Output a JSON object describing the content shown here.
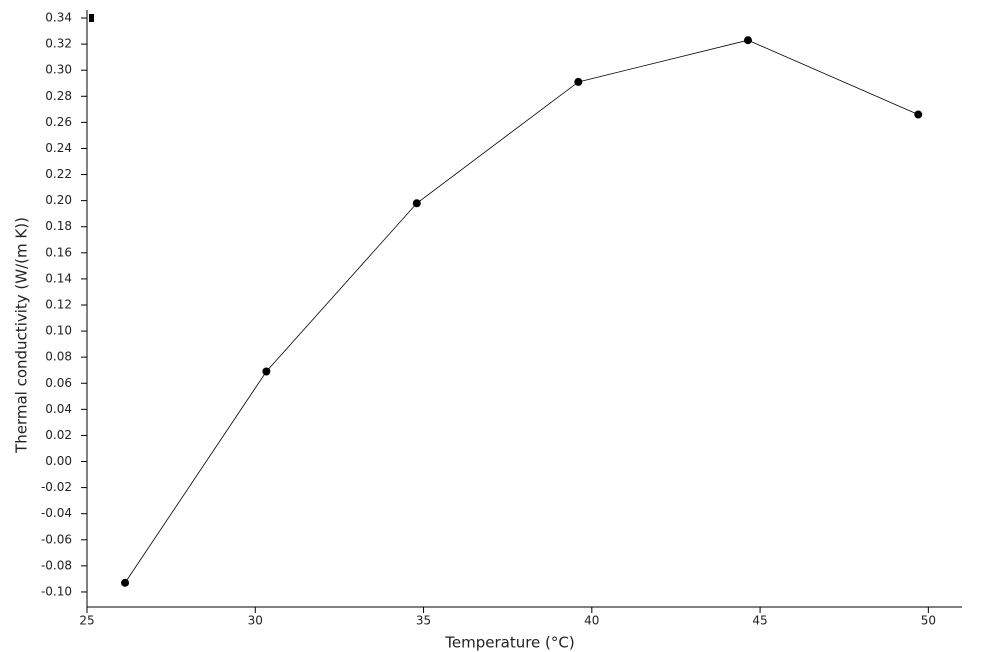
{
  "chart_data": {
    "type": "line",
    "x_label": "Temperature (°C)",
    "y_label": "Thermal conductivity (W/(m K))",
    "x": [
      26.13,
      30.33,
      34.8,
      39.6,
      44.64,
      49.7
    ],
    "series": [
      {
        "color": "#000000",
        "values": [
          -0.093,
          0.069,
          0.198,
          0.291,
          0.323,
          0.266
        ]
      }
    ],
    "xlim": [
      25,
      51
    ],
    "ylim": [
      -0.11,
      0.345
    ],
    "xticks": [
      25,
      30,
      35,
      40,
      45,
      50
    ],
    "yticks": [
      {
        "value": 0.34,
        "label": "0.34"
      },
      {
        "value": 0.32,
        "label": "0.32"
      },
      {
        "value": 0.3,
        "label": "0.30"
      },
      {
        "value": 0.28,
        "label": "0.28"
      },
      {
        "value": 0.26,
        "label": "0.26"
      },
      {
        "value": 0.24,
        "label": "0.24"
      },
      {
        "value": 0.22,
        "label": "0.22"
      },
      {
        "value": 0.2,
        "label": "0.20"
      },
      {
        "value": 0.18,
        "label": "0.18"
      },
      {
        "value": 0.16,
        "label": "0.16"
      },
      {
        "value": 0.14,
        "label": "0.14"
      },
      {
        "value": 0.12,
        "label": "0.12"
      },
      {
        "value": 0.1,
        "label": "0.10"
      },
      {
        "value": 0.08,
        "label": "0.08"
      },
      {
        "value": 0.06,
        "label": "0.06"
      },
      {
        "value": 0.04,
        "label": "0.04"
      },
      {
        "value": 0.02,
        "label": "0.02"
      },
      {
        "value": 0,
        "label": "0.00"
      },
      {
        "value": -0.02,
        "label": "-0.02"
      },
      {
        "value": -0.04,
        "label": "-0.04"
      },
      {
        "value": -0.06,
        "label": "-0.06"
      },
      {
        "value": -0.08,
        "label": "-0.08"
      },
      {
        "value": -0.1,
        "label": "-0.10"
      }
    ],
    "grid": false
  }
}
